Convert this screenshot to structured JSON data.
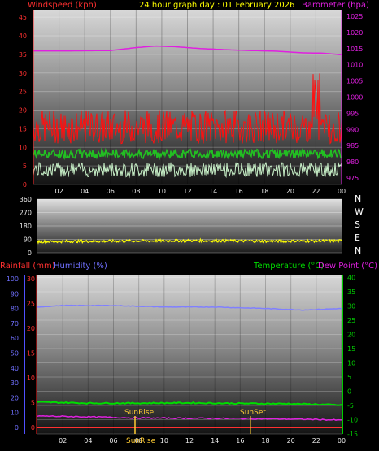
{
  "title": "24 hour graph day : 01 February 2026",
  "colors": {
    "wind": "#ff1010",
    "gust_avg": "#22c022",
    "wind_avg": "#c8f0c8",
    "baro": "#e020e0",
    "dir": "#ffff00",
    "temp": "#00dd00",
    "dew": "#e020e0",
    "hum": "#8080ff",
    "rain": "#ff3030",
    "sun": "#ffcc33",
    "axis_right_temp": "#00cc00",
    "axis_left_rain": "#ff3030",
    "axis_left_hum": "#7070ff"
  },
  "chart_data": [
    {
      "type": "line",
      "id": "wind",
      "x_ticks": [
        "02",
        "04",
        "06",
        "08",
        "10",
        "12",
        "14",
        "16",
        "18",
        "20",
        "22",
        "00"
      ],
      "left_label": "Windspeed (kph)",
      "left_ticks": [
        0,
        5,
        10,
        15,
        20,
        25,
        30,
        35,
        40,
        45
      ],
      "left_range": [
        0,
        47
      ],
      "right_label": "Barometer (hpa)",
      "right_ticks": [
        975,
        980,
        985,
        990,
        995,
        1000,
        1005,
        1010,
        1015,
        1020,
        1025
      ],
      "right_range": [
        973,
        1027
      ],
      "series": [
        {
          "key": "barometer",
          "hours": [
            0,
            3,
            6,
            8,
            9.5,
            11,
            13,
            16,
            19,
            21,
            22.5,
            24
          ],
          "values": [
            1014.3,
            1014.3,
            1014.4,
            1015.3,
            1015.8,
            1015.6,
            1015.0,
            1014.5,
            1014.2,
            1013.7,
            1013.6,
            1013.1
          ]
        }
      ]
    },
    {
      "type": "line",
      "id": "direction",
      "y_ticks": [
        0,
        90,
        180,
        270,
        360
      ],
      "y_range": [
        0,
        360
      ],
      "compass": [
        "N",
        "W",
        "S",
        "E",
        "N"
      ],
      "series": [
        {
          "key": "wind_direction",
          "hours": [
            0,
            6,
            12,
            18,
            24
          ],
          "values": [
            75,
            78,
            82,
            78,
            80
          ]
        }
      ]
    },
    {
      "type": "line",
      "id": "temp",
      "x_ticks": [
        "02",
        "04",
        "06",
        "08",
        "10",
        "12",
        "14",
        "16",
        "18",
        "20",
        "22",
        "00"
      ],
      "rain_label": "Rainfall (mm)",
      "rain_ticks": [
        0,
        5,
        10,
        15,
        20,
        25,
        30
      ],
      "humidity_label": "Humidity (%)",
      "humidity_ticks": [
        0,
        10,
        20,
        30,
        40,
        50,
        60,
        70,
        80,
        90,
        100
      ],
      "temp_label": "Temperature (°C)",
      "dew_label": "Dew Point (°C)",
      "temp_ticks": [
        -15,
        -10,
        -5,
        0,
        5,
        10,
        15,
        20,
        25,
        30,
        35,
        40
      ],
      "temp_range": [
        -15,
        41
      ],
      "series": [
        {
          "key": "humidity",
          "hours": [
            0,
            2,
            6,
            10,
            14,
            18,
            21,
            24
          ],
          "values": [
            81,
            82,
            82,
            81,
            81,
            80,
            79,
            80
          ]
        },
        {
          "key": "temperature",
          "hours": [
            0,
            4,
            8,
            12,
            16,
            20,
            22,
            24
          ],
          "values": [
            -3.8,
            -4.2,
            -4.2,
            -4.1,
            -4.3,
            -4.4,
            -4.6,
            -4.9
          ]
        },
        {
          "key": "dew_point",
          "hours": [
            0,
            4,
            8,
            12,
            16,
            20,
            22,
            24
          ],
          "values": [
            -8.7,
            -9.0,
            -9.4,
            -9.5,
            -9.6,
            -9.8,
            -9.9,
            -10.2
          ]
        },
        {
          "key": "rainfall",
          "hours": [
            0,
            24
          ],
          "values": [
            0,
            0
          ]
        }
      ],
      "sunrise_label": "SunRise",
      "sunset_label": "SunSet",
      "sunrise_hour": 7.7,
      "sunset_hour": 16.8,
      "sunrise_bottom_label": "SunRise"
    }
  ]
}
